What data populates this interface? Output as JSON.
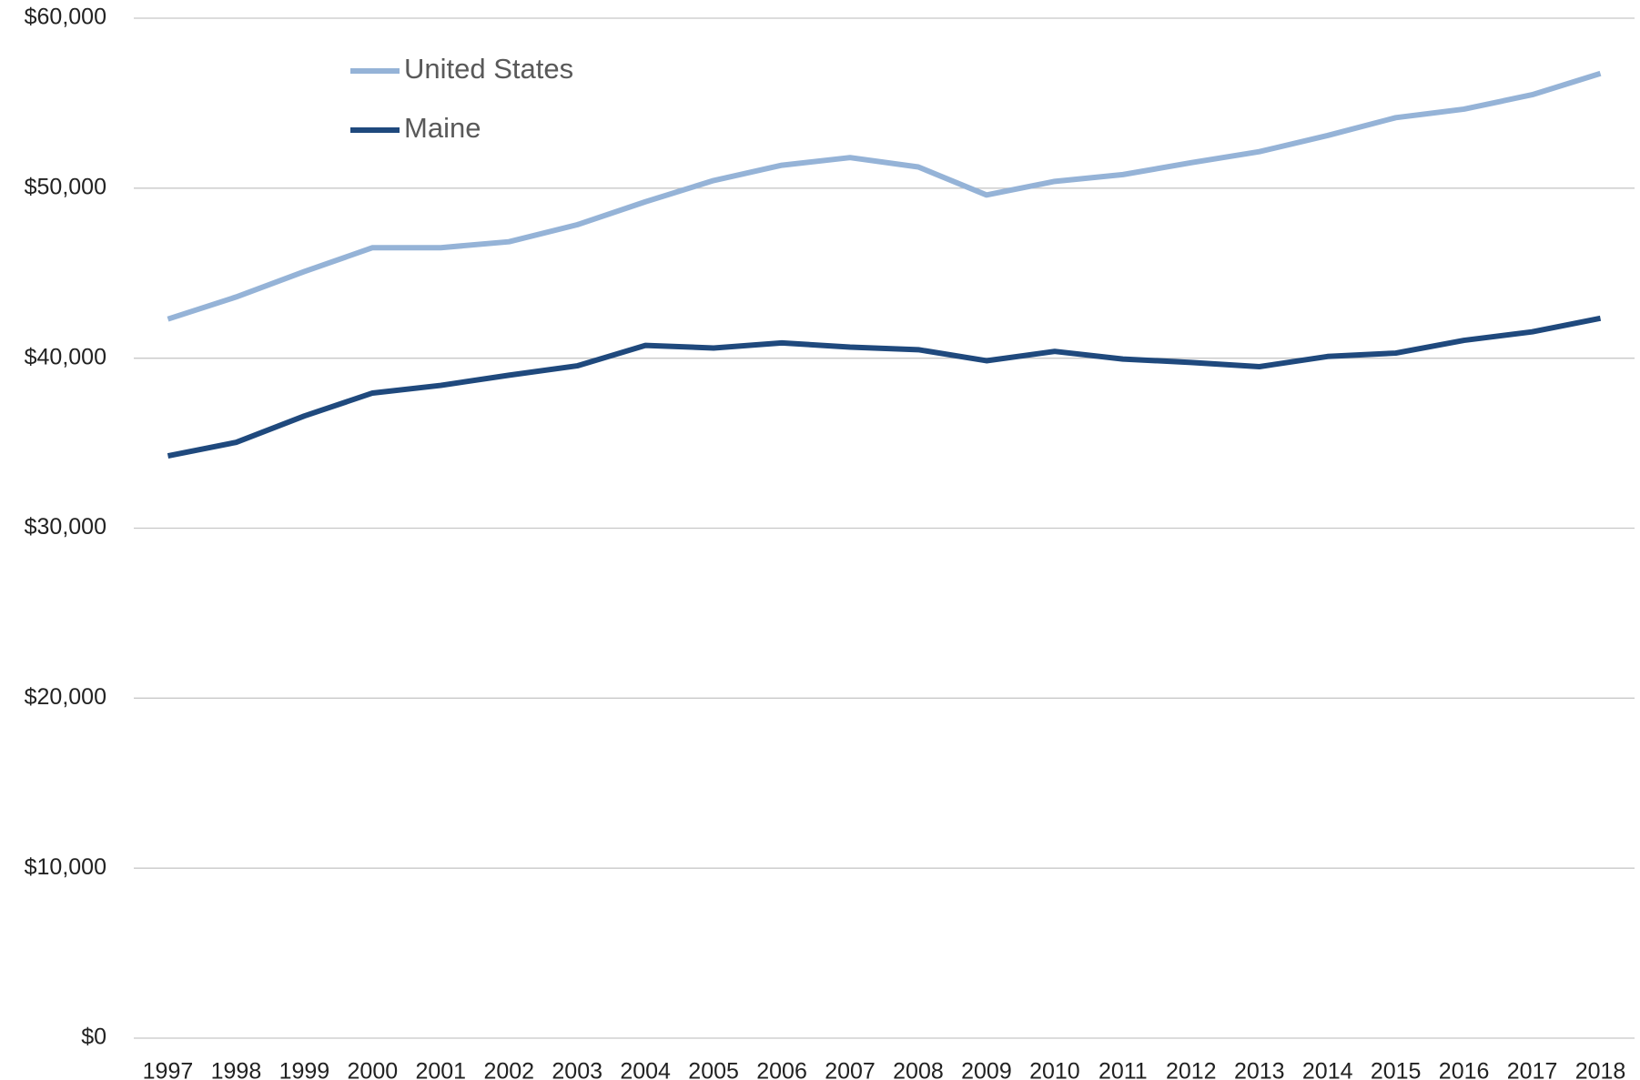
{
  "chart_data": {
    "type": "line",
    "categories": [
      "1997",
      "1998",
      "1999",
      "2000",
      "2001",
      "2002",
      "2003",
      "2004",
      "2005",
      "2006",
      "2007",
      "2008",
      "2009",
      "2010",
      "2011",
      "2012",
      "2013",
      "2014",
      "2015",
      "2016",
      "2017",
      "2018"
    ],
    "series": [
      {
        "name": "United States",
        "color": "#95b3d7",
        "values": [
          42300,
          43600,
          45100,
          46500,
          46500,
          46850,
          47850,
          49200,
          50450,
          51350,
          51800,
          51250,
          49600,
          50400,
          50800,
          51500,
          52150,
          53100,
          54150,
          54650,
          55500,
          56750
        ]
      },
      {
        "name": "Maine",
        "color": "#1f497d",
        "values": [
          34250,
          35050,
          36600,
          37950,
          38400,
          39000,
          39550,
          40750,
          40600,
          40900,
          40650,
          40500,
          39850,
          40400,
          39950,
          39750,
          39500,
          40100,
          40300,
          41050,
          41550,
          42350
        ]
      }
    ],
    "ylim": [
      0,
      60000
    ],
    "yticks": [
      {
        "value": 0,
        "label": "$0"
      },
      {
        "value": 10000,
        "label": "$10,000"
      },
      {
        "value": 20000,
        "label": "$20,000"
      },
      {
        "value": 30000,
        "label": "$30,000"
      },
      {
        "value": 40000,
        "label": "$40,000"
      },
      {
        "value": 50000,
        "label": "$50,000"
      },
      {
        "value": 60000,
        "label": "$60,000"
      }
    ],
    "grid": true,
    "legend": "top-left"
  }
}
